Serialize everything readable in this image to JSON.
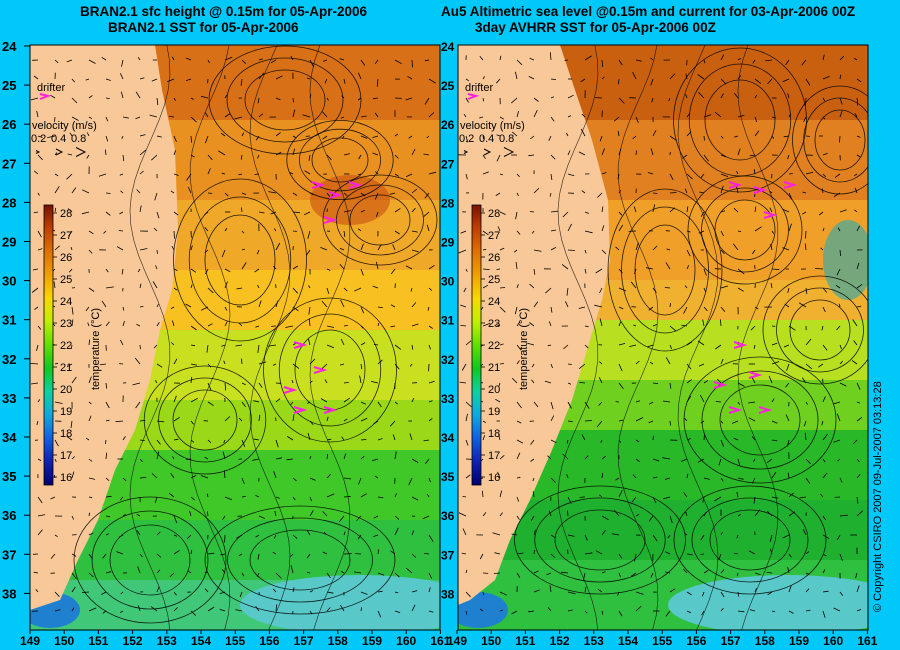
{
  "panels": [
    {
      "title_line1": "BRAN2.1 sfc height @ 0.15m for 05-Apr-2006",
      "title_line2": "BRAN2.1 SST for 05-Apr-2006"
    },
    {
      "title_line1": "Au5 Altimetric sea level  @0.15m and current for 03-Apr-2006 00Z",
      "title_line2": "3day AVHRR SST for 05-Apr-2006 00Z"
    }
  ],
  "map": {
    "lat_labels": [
      "24",
      "25",
      "26",
      "27",
      "28",
      "29",
      "30",
      "31",
      "32",
      "33",
      "34",
      "35",
      "36",
      "37",
      "38"
    ],
    "lon_labels": [
      "149",
      "150",
      "151",
      "152",
      "153",
      "154",
      "155",
      "156",
      "157",
      "158",
      "159",
      "160",
      "161"
    ],
    "drifter_label": "drifter",
    "velocity_label": "velocity (m/s)",
    "velocity_values": [
      "0.2",
      "0.4",
      "0.8"
    ]
  },
  "colorbar": {
    "ticks": [
      "28",
      "27",
      "26",
      "25",
      "24",
      "23",
      "22",
      "21",
      "20",
      "19",
      "18",
      "17",
      "16"
    ],
    "label": "temperature (°C)",
    "stops": [
      "#7a1000",
      "#c04000",
      "#e07000",
      "#f0a000",
      "#f8d800",
      "#c0f000",
      "#60e000",
      "#10c820",
      "#10d0a0",
      "#10a8e0",
      "#1060e0",
      "#1020b0",
      "#000070"
    ]
  },
  "copyright": "© Copyright CSIRO 2007  09-Jul-2007 03:13:28",
  "colors": {
    "background": "#00c8f8",
    "land": "#f8c898",
    "drifter": "#ff20e0"
  }
}
